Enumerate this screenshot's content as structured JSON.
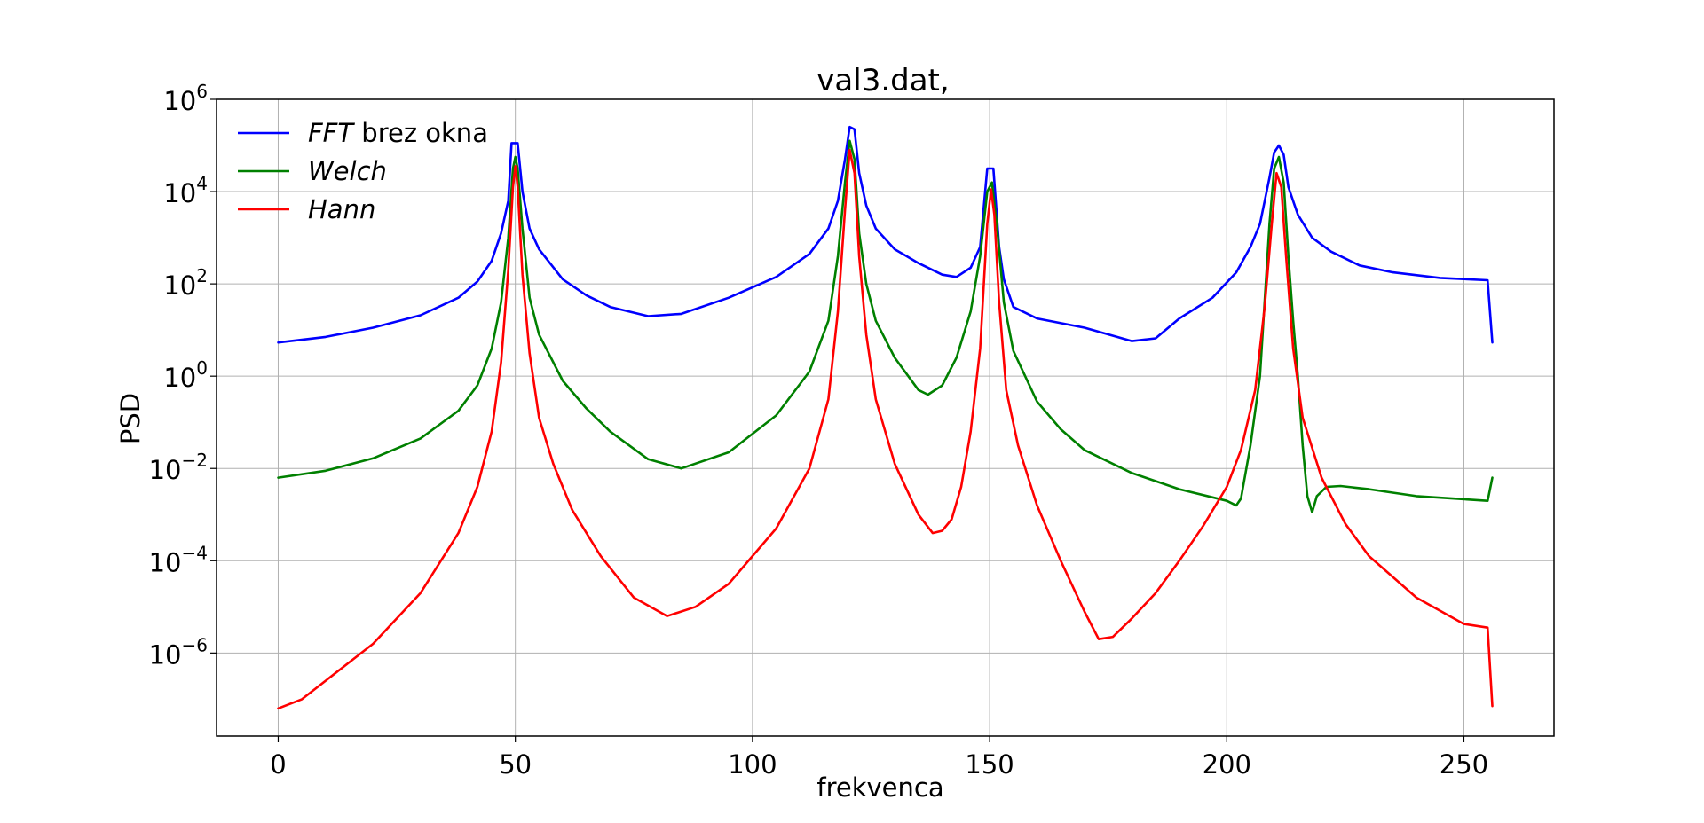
{
  "chart_data": {
    "type": "line",
    "title": "val3.dat,",
    "xlabel": "frekvenca",
    "ylabel": "PSD",
    "xlim": [
      -13,
      269
    ],
    "ylim_log10": [
      -7.8,
      6
    ],
    "yscale": "log",
    "grid": true,
    "legend_position": "top-left",
    "x_ticks": [
      0,
      50,
      100,
      150,
      200,
      250
    ],
    "x_tick_labels": [
      "0",
      "50",
      "100",
      "150",
      "200",
      "250"
    ],
    "y_ticks_log10": [
      6,
      4,
      2,
      0,
      -2,
      -4,
      -6
    ],
    "y_tick_labels": [
      {
        "base": "10",
        "exp": "6"
      },
      {
        "base": "10",
        "exp": "4"
      },
      {
        "base": "10",
        "exp": "2"
      },
      {
        "base": "10",
        "exp": "0"
      },
      {
        "base": "10",
        "exp": "−2"
      },
      {
        "base": "10",
        "exp": "−4"
      },
      {
        "base": "10",
        "exp": "−6"
      }
    ],
    "legend": [
      {
        "italic": "FFT",
        "rest": " brez okna",
        "color": "#0000ff"
      },
      {
        "italic": "Welch",
        "rest": "",
        "color": "#008000"
      },
      {
        "italic": "Hann",
        "rest": "",
        "color": "#ff0000"
      }
    ],
    "series": [
      {
        "name": "FFT brez okna",
        "color": "#0000ff",
        "points_log10": [
          [
            0,
            0.73
          ],
          [
            10,
            0.85
          ],
          [
            20,
            1.05
          ],
          [
            30,
            1.32
          ],
          [
            38,
            1.7
          ],
          [
            42,
            2.05
          ],
          [
            45,
            2.5
          ],
          [
            47,
            3.1
          ],
          [
            48.5,
            3.8
          ],
          [
            49.2,
            5.05
          ],
          [
            50.5,
            5.05
          ],
          [
            51.5,
            4.0
          ],
          [
            53,
            3.2
          ],
          [
            55,
            2.75
          ],
          [
            60,
            2.1
          ],
          [
            65,
            1.75
          ],
          [
            70,
            1.5
          ],
          [
            78,
            1.3
          ],
          [
            85,
            1.35
          ],
          [
            95,
            1.7
          ],
          [
            105,
            2.15
          ],
          [
            112,
            2.65
          ],
          [
            116,
            3.2
          ],
          [
            118,
            3.8
          ],
          [
            119.5,
            4.7
          ],
          [
            120.5,
            5.4
          ],
          [
            121.5,
            5.35
          ],
          [
            122.5,
            4.4
          ],
          [
            124,
            3.7
          ],
          [
            126,
            3.2
          ],
          [
            130,
            2.75
          ],
          [
            135,
            2.45
          ],
          [
            140,
            2.2
          ],
          [
            143,
            2.15
          ],
          [
            146,
            2.35
          ],
          [
            148,
            2.8
          ],
          [
            149.5,
            4.5
          ],
          [
            150.8,
            4.5
          ],
          [
            152,
            2.8
          ],
          [
            153,
            2.1
          ],
          [
            155,
            1.5
          ],
          [
            160,
            1.25
          ],
          [
            170,
            1.05
          ],
          [
            180,
            0.76
          ],
          [
            185,
            0.82
          ],
          [
            190,
            1.25
          ],
          [
            197,
            1.7
          ],
          [
            202,
            2.25
          ],
          [
            205,
            2.8
          ],
          [
            207,
            3.3
          ],
          [
            209,
            4.3
          ],
          [
            210,
            4.85
          ],
          [
            211,
            5.0
          ],
          [
            212,
            4.8
          ],
          [
            213,
            4.1
          ],
          [
            215,
            3.5
          ],
          [
            218,
            3.0
          ],
          [
            222,
            2.7
          ],
          [
            228,
            2.4
          ],
          [
            235,
            2.25
          ],
          [
            245,
            2.13
          ],
          [
            255,
            2.08
          ],
          [
            256,
            0.73
          ]
        ]
      },
      {
        "name": "Welch",
        "color": "#008000",
        "points_log10": [
          [
            0,
            -2.2
          ],
          [
            10,
            -2.05
          ],
          [
            20,
            -1.78
          ],
          [
            30,
            -1.35
          ],
          [
            38,
            -0.75
          ],
          [
            42,
            -0.2
          ],
          [
            45,
            0.6
          ],
          [
            47,
            1.6
          ],
          [
            48.5,
            3.0
          ],
          [
            49.5,
            4.5
          ],
          [
            50,
            4.75
          ],
          [
            50.5,
            4.5
          ],
          [
            51.5,
            3.2
          ],
          [
            53,
            1.7
          ],
          [
            55,
            0.9
          ],
          [
            60,
            -0.1
          ],
          [
            65,
            -0.7
          ],
          [
            70,
            -1.2
          ],
          [
            78,
            -1.8
          ],
          [
            85,
            -2.0
          ],
          [
            95,
            -1.65
          ],
          [
            105,
            -0.85
          ],
          [
            112,
            0.1
          ],
          [
            116,
            1.2
          ],
          [
            118,
            2.6
          ],
          [
            119.5,
            4.2
          ],
          [
            120.5,
            5.1
          ],
          [
            121.5,
            4.7
          ],
          [
            122.5,
            3.1
          ],
          [
            124,
            2.0
          ],
          [
            126,
            1.2
          ],
          [
            130,
            0.4
          ],
          [
            135,
            -0.3
          ],
          [
            137,
            -0.4
          ],
          [
            140,
            -0.2
          ],
          [
            143,
            0.4
          ],
          [
            146,
            1.4
          ],
          [
            148,
            2.6
          ],
          [
            149.5,
            4.0
          ],
          [
            150.5,
            4.2
          ],
          [
            151.5,
            3.3
          ],
          [
            153,
            1.6
          ],
          [
            155,
            0.55
          ],
          [
            160,
            -0.55
          ],
          [
            165,
            -1.15
          ],
          [
            170,
            -1.6
          ],
          [
            180,
            -2.1
          ],
          [
            190,
            -2.45
          ],
          [
            200,
            -2.7
          ],
          [
            202,
            -2.8
          ],
          [
            203,
            -2.65
          ],
          [
            205,
            -1.5
          ],
          [
            207,
            0.0
          ],
          [
            209,
            3.3
          ],
          [
            210,
            4.5
          ],
          [
            211,
            4.75
          ],
          [
            212,
            4.2
          ],
          [
            213,
            2.6
          ],
          [
            214,
            1.2
          ],
          [
            215,
            0.0
          ],
          [
            216,
            -1.5
          ],
          [
            217,
            -2.6
          ],
          [
            218,
            -2.95
          ],
          [
            219,
            -2.6
          ],
          [
            221,
            -2.4
          ],
          [
            224,
            -2.38
          ],
          [
            230,
            -2.45
          ],
          [
            240,
            -2.6
          ],
          [
            255,
            -2.7
          ],
          [
            256,
            -2.2
          ]
        ]
      },
      {
        "name": "Hann",
        "color": "#ff0000",
        "points_log10": [
          [
            0,
            -7.2
          ],
          [
            5,
            -7.0
          ],
          [
            10,
            -6.6
          ],
          [
            20,
            -5.8
          ],
          [
            30,
            -4.7
          ],
          [
            38,
            -3.4
          ],
          [
            42,
            -2.4
          ],
          [
            45,
            -1.2
          ],
          [
            47,
            0.3
          ],
          [
            48.5,
            2.3
          ],
          [
            49.5,
            4.1
          ],
          [
            50,
            4.55
          ],
          [
            50.5,
            4.1
          ],
          [
            51.5,
            2.2
          ],
          [
            53,
            0.5
          ],
          [
            55,
            -0.9
          ],
          [
            58,
            -1.9
          ],
          [
            62,
            -2.9
          ],
          [
            68,
            -3.9
          ],
          [
            75,
            -4.8
          ],
          [
            82,
            -5.2
          ],
          [
            88,
            -5.0
          ],
          [
            95,
            -4.5
          ],
          [
            105,
            -3.3
          ],
          [
            112,
            -2.0
          ],
          [
            116,
            -0.5
          ],
          [
            118,
            1.4
          ],
          [
            119.5,
            3.6
          ],
          [
            120.5,
            4.9
          ],
          [
            121.5,
            4.4
          ],
          [
            122.5,
            2.6
          ],
          [
            124,
            0.9
          ],
          [
            126,
            -0.5
          ],
          [
            130,
            -1.9
          ],
          [
            135,
            -3.0
          ],
          [
            138,
            -3.4
          ],
          [
            140,
            -3.35
          ],
          [
            142,
            -3.1
          ],
          [
            144,
            -2.4
          ],
          [
            146,
            -1.2
          ],
          [
            148,
            0.6
          ],
          [
            149.5,
            3.3
          ],
          [
            150.3,
            4.05
          ],
          [
            151,
            3.5
          ],
          [
            152,
            1.6
          ],
          [
            153.5,
            -0.3
          ],
          [
            156,
            -1.5
          ],
          [
            160,
            -2.8
          ],
          [
            165,
            -4.0
          ],
          [
            170,
            -5.1
          ],
          [
            173,
            -5.7
          ],
          [
            176,
            -5.65
          ],
          [
            180,
            -5.25
          ],
          [
            185,
            -4.7
          ],
          [
            190,
            -4.0
          ],
          [
            195,
            -3.25
          ],
          [
            200,
            -2.4
          ],
          [
            203,
            -1.6
          ],
          [
            206,
            -0.3
          ],
          [
            208,
            1.5
          ],
          [
            209.5,
            3.3
          ],
          [
            210.5,
            4.4
          ],
          [
            211.5,
            4.1
          ],
          [
            212.5,
            2.6
          ],
          [
            214,
            0.6
          ],
          [
            216,
            -0.9
          ],
          [
            220,
            -2.2
          ],
          [
            225,
            -3.2
          ],
          [
            230,
            -3.9
          ],
          [
            240,
            -4.8
          ],
          [
            250,
            -5.37
          ],
          [
            255,
            -5.45
          ],
          [
            256,
            -7.15
          ]
        ]
      }
    ]
  }
}
